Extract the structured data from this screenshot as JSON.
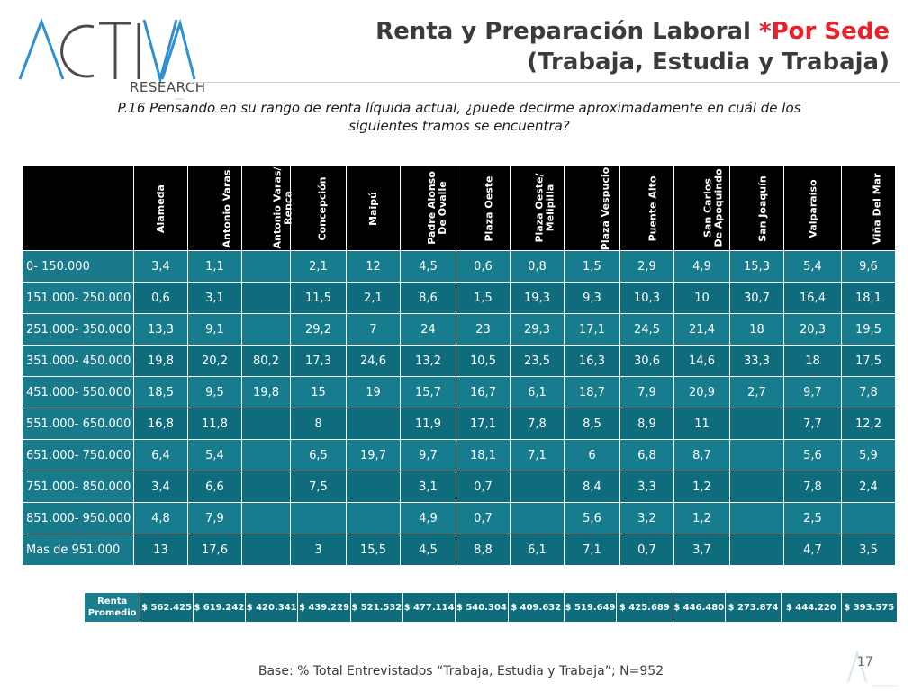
{
  "logo": {
    "main": "ACTIVA",
    "sub": "RESEARCH"
  },
  "title": {
    "line1": "Renta y Preparación Laboral ",
    "accent": "*Por Sede",
    "line2": "(Trabaja, Estudia y Trabaja)"
  },
  "question": {
    "line1": "P.16  Pensando en su rango de renta líquida actual, ¿puede decirme aproximadamente en cuál de los",
    "line2": "siguientes tramos se encuentra?"
  },
  "table": {
    "columns": [
      "Alameda",
      "Antonio Varas",
      "Antonio Varas/ Renca",
      "Concepción",
      "Maipú",
      "Padre Alonso De Ovalle",
      "Plaza Oeste",
      "Plaza Oeste/ Melipilla",
      "Plaza Vespucio",
      "Puente Alto",
      "San Carlos De Apoquindo",
      "San Joaquín",
      "Valparaíso",
      "Viña Del Mar"
    ],
    "rows": [
      {
        "label": "0- 150.000",
        "values": [
          "3,4",
          "1,1",
          "",
          "2,1",
          "12",
          "4,5",
          "0,6",
          "0,8",
          "1,5",
          "2,9",
          "4,9",
          "15,3",
          "5,4",
          "9,6"
        ]
      },
      {
        "label": "151.000- 250.000",
        "values": [
          "0,6",
          "3,1",
          "",
          "11,5",
          "2,1",
          "8,6",
          "1,5",
          "19,3",
          "9,3",
          "10,3",
          "10",
          "30,7",
          "16,4",
          "18,1"
        ]
      },
      {
        "label": "251.000- 350.000",
        "values": [
          "13,3",
          "9,1",
          "",
          "29,2",
          "7",
          "24",
          "23",
          "29,3",
          "17,1",
          "24,5",
          "21,4",
          "18",
          "20,3",
          "19,5"
        ]
      },
      {
        "label": "351.000- 450.000",
        "values": [
          "19,8",
          "20,2",
          "80,2",
          "17,3",
          "24,6",
          "13,2",
          "10,5",
          "23,5",
          "16,3",
          "30,6",
          "14,6",
          "33,3",
          "18",
          "17,5"
        ]
      },
      {
        "label": "451.000- 550.000",
        "values": [
          "18,5",
          "9,5",
          "19,8",
          "15",
          "19",
          "15,7",
          "16,7",
          "6,1",
          "18,7",
          "7,9",
          "20,9",
          "2,7",
          "9,7",
          "7,8"
        ]
      },
      {
        "label": "551.000- 650.000",
        "values": [
          "16,8",
          "11,8",
          "",
          "8",
          "",
          "11,9",
          "17,1",
          "7,8",
          "8,5",
          "8,9",
          "11",
          "",
          "7,7",
          "12,2"
        ]
      },
      {
        "label": "651.000- 750.000",
        "values": [
          "6,4",
          "5,4",
          "",
          "6,5",
          "19,7",
          "9,7",
          "18,1",
          "7,1",
          "6",
          "6,8",
          "8,7",
          "",
          "5,6",
          "5,9"
        ]
      },
      {
        "label": "751.000- 850.000",
        "values": [
          "3,4",
          "6,6",
          "",
          "7,5",
          "",
          "3,1",
          "0,7",
          "",
          "8,4",
          "3,3",
          "1,2",
          "",
          "7,8",
          "2,4"
        ]
      },
      {
        "label": "851.000- 950.000",
        "values": [
          "4,8",
          "7,9",
          "",
          "",
          "",
          "4,9",
          "0,7",
          "",
          "5,6",
          "3,2",
          "1,2",
          "",
          "2,5",
          ""
        ]
      },
      {
        "label": "Mas de 951.000",
        "values": [
          "13",
          "17,6",
          "",
          "3",
          "15,5",
          "4,5",
          "8,8",
          "6,1",
          "7,1",
          "0,7",
          "3,7",
          "",
          "4,7",
          "3,5"
        ]
      }
    ]
  },
  "average": {
    "label_line1": "Renta",
    "label_line2": "Promedio",
    "values": [
      "$ 562.425",
      "$ 619.242",
      "$ 420.341",
      "$ 439.229",
      "$ 521.532",
      "$ 477.114",
      "$ 540.304",
      "$ 409.632",
      "$ 519.649",
      "$ 425.689",
      "$ 446.480",
      "$ 273.874",
      "$ 444.220",
      "$ 393.575"
    ]
  },
  "footer": {
    "base": "Base: % Total Entrevistados “Trabaja, Estudia y Trabaja”; N=952",
    "page": "17"
  },
  "colors": {
    "header_bg": "#000000",
    "cell_bg": "#0f6c7d",
    "accent": "#e8202a",
    "logo_blue": "#2f8fcf",
    "logo_gray": "#4a4a4a"
  }
}
